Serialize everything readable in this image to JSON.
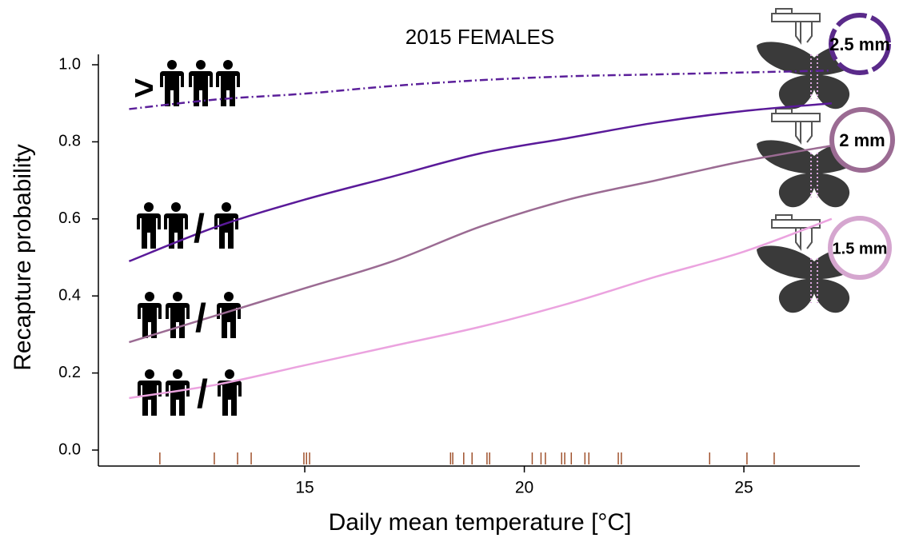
{
  "chart_data": {
    "type": "line",
    "title": "2015 FEMALES",
    "x_label": "Daily mean temperature [°C]",
    "y_label": "Recapture probability",
    "x": [
      11,
      13,
      15,
      17,
      19,
      21,
      23,
      25,
      27
    ],
    "series": [
      {
        "color": "#5b1f9a",
        "linestyle": "dashdot",
        "values": [
          0.885,
          0.91,
          0.925,
          0.945,
          0.96,
          0.97,
          0.975,
          0.98,
          0.985
        ]
      },
      {
        "color": "#5a1a99",
        "linestyle": "solid",
        "values": [
          0.49,
          0.58,
          0.65,
          0.71,
          0.77,
          0.81,
          0.85,
          0.88,
          0.9
        ]
      },
      {
        "color": "#9b6b93",
        "linestyle": "solid",
        "values": [
          0.28,
          0.35,
          0.42,
          0.49,
          0.58,
          0.65,
          0.7,
          0.75,
          0.79
        ]
      },
      {
        "color": "#eba3df",
        "linestyle": "solid",
        "values": [
          0.135,
          0.17,
          0.22,
          0.27,
          0.32,
          0.38,
          0.45,
          0.515,
          0.6
        ]
      }
    ],
    "xlim": [
      10.3,
      27.64
    ],
    "ylim": [
      -0.0415,
      1.027
    ],
    "xticks": [
      15,
      20,
      25
    ],
    "yticks": [
      {
        "value": 0,
        "label": "0.0"
      },
      {
        "value": 0.2,
        "label": "0.2"
      },
      {
        "value": 0.4,
        "label": "0.4"
      },
      {
        "value": 0.6,
        "label": "0.6"
      },
      {
        "value": 0.8,
        "label": "0.8"
      },
      {
        "value": 1,
        "label": "1.0"
      }
    ],
    "rug_color": "#a0522d",
    "rug_x": [
      11.7,
      12.94,
      13.47,
      13.78,
      14.98,
      15.04,
      15.11,
      18.32,
      18.37,
      18.62,
      18.81,
      19.15,
      19.21,
      20.18,
      20.38,
      20.48,
      20.85,
      20.92,
      21.07,
      21.38,
      21.47,
      22.14,
      22.21,
      24.22,
      25.07,
      25.69
    ],
    "annotations": [
      ">",
      "/",
      "/",
      "/",
      "2.5 mm",
      "2 mm",
      "1.5 mm"
    ]
  }
}
